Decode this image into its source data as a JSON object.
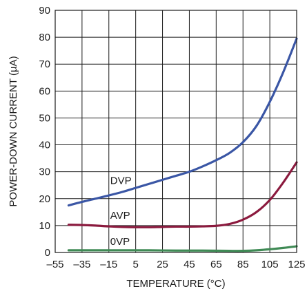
{
  "chart_data": {
    "type": "line",
    "title": "",
    "xlabel": "TEMPERATURE (°C)",
    "ylabel": "POWER-DOWN CURRENT (µA)",
    "xlim": [
      -55,
      125
    ],
    "ylim": [
      0,
      90
    ],
    "x_ticks": [
      -55,
      -35,
      -15,
      5,
      25,
      45,
      65,
      85,
      105,
      125
    ],
    "x_tick_labels": [
      "–55",
      "–35",
      "–15",
      "5",
      "25",
      "45",
      "65",
      "85",
      "105",
      "125"
    ],
    "y_ticks": [
      0,
      10,
      20,
      30,
      40,
      50,
      60,
      70,
      80,
      90
    ],
    "y_tick_labels": [
      "0",
      "10",
      "20",
      "30",
      "40",
      "50",
      "60",
      "70",
      "80",
      "90"
    ],
    "grid": true,
    "legend": "inline-labels",
    "series": [
      {
        "name": "DVP",
        "color": "#3a56a5",
        "label_at": [
          -15,
          25.5
        ],
        "x": [
          -45,
          -35,
          -25,
          -15,
          -5,
          5,
          15,
          25,
          35,
          45,
          55,
          65,
          75,
          85,
          95,
          105,
          115,
          125
        ],
        "y": [
          17.5,
          18.8,
          20.0,
          21.2,
          22.5,
          24.0,
          25.5,
          27.0,
          28.5,
          30.0,
          32.0,
          34.3,
          37.0,
          41.0,
          47.0,
          56.0,
          67.0,
          79.5
        ]
      },
      {
        "name": "AVP",
        "color": "#8b1a3e",
        "label_at": [
          -15,
          12.5
        ],
        "x": [
          -45,
          -35,
          -25,
          -15,
          -5,
          5,
          15,
          25,
          35,
          45,
          55,
          65,
          75,
          85,
          95,
          105,
          115,
          125
        ],
        "y": [
          10.3,
          10.2,
          10.0,
          9.7,
          9.5,
          9.4,
          9.4,
          9.5,
          9.6,
          9.6,
          9.7,
          9.9,
          10.6,
          12.2,
          15.0,
          19.5,
          26.0,
          33.5
        ]
      },
      {
        "name": "0VP",
        "color": "#3f8a55",
        "label_at": [
          -15,
          2.8
        ],
        "x": [
          -45,
          -25,
          -5,
          15,
          35,
          55,
          75,
          85,
          95,
          105,
          115,
          125
        ],
        "y": [
          0.8,
          0.8,
          0.8,
          0.8,
          0.7,
          0.7,
          0.6,
          0.6,
          0.8,
          1.2,
          1.7,
          2.3
        ]
      }
    ]
  }
}
